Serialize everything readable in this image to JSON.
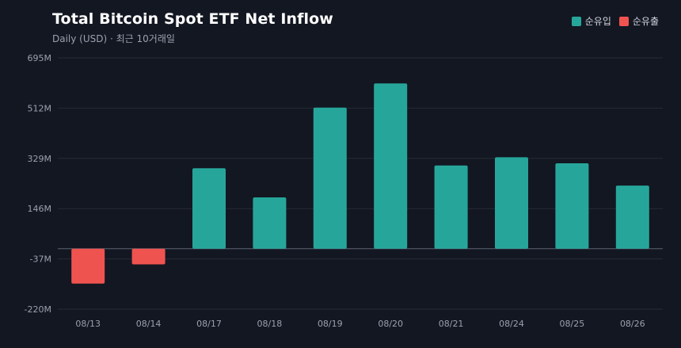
{
  "header": {
    "title": "Total Bitcoin Spot ETF Net Inflow",
    "subtitle": "Daily (USD) · 최근 10거래일"
  },
  "legend": [
    {
      "label": "순유입",
      "color": "#26a69a"
    },
    {
      "label": "순유출",
      "color": "#ef5350"
    }
  ],
  "chart_data": {
    "type": "bar",
    "title": "Total Bitcoin Spot ETF Net Inflow",
    "subtitle": "Daily (USD) · 최근 10거래일",
    "xlabel": "",
    "ylabel": "",
    "categories": [
      "08/13",
      "08/14",
      "08/17",
      "08/18",
      "08/19",
      "08/20",
      "08/21",
      "08/24",
      "08/25",
      "08/26"
    ],
    "series": [
      {
        "name": "순유입/순유출",
        "values": [
          -127,
          -57,
          293,
          187,
          514,
          602,
          303,
          333,
          311,
          230
        ]
      }
    ],
    "ylim": [
      -220,
      695
    ],
    "yticks": [
      695,
      512,
      329,
      146,
      -37,
      -220
    ],
    "ytick_labels": [
      "695M",
      "512M",
      "329M",
      "146M",
      "-37M",
      "-220M"
    ],
    "colors": {
      "positive": "#26a69a",
      "negative": "#ef5350"
    },
    "grid": true,
    "legend_position": "top-right"
  }
}
